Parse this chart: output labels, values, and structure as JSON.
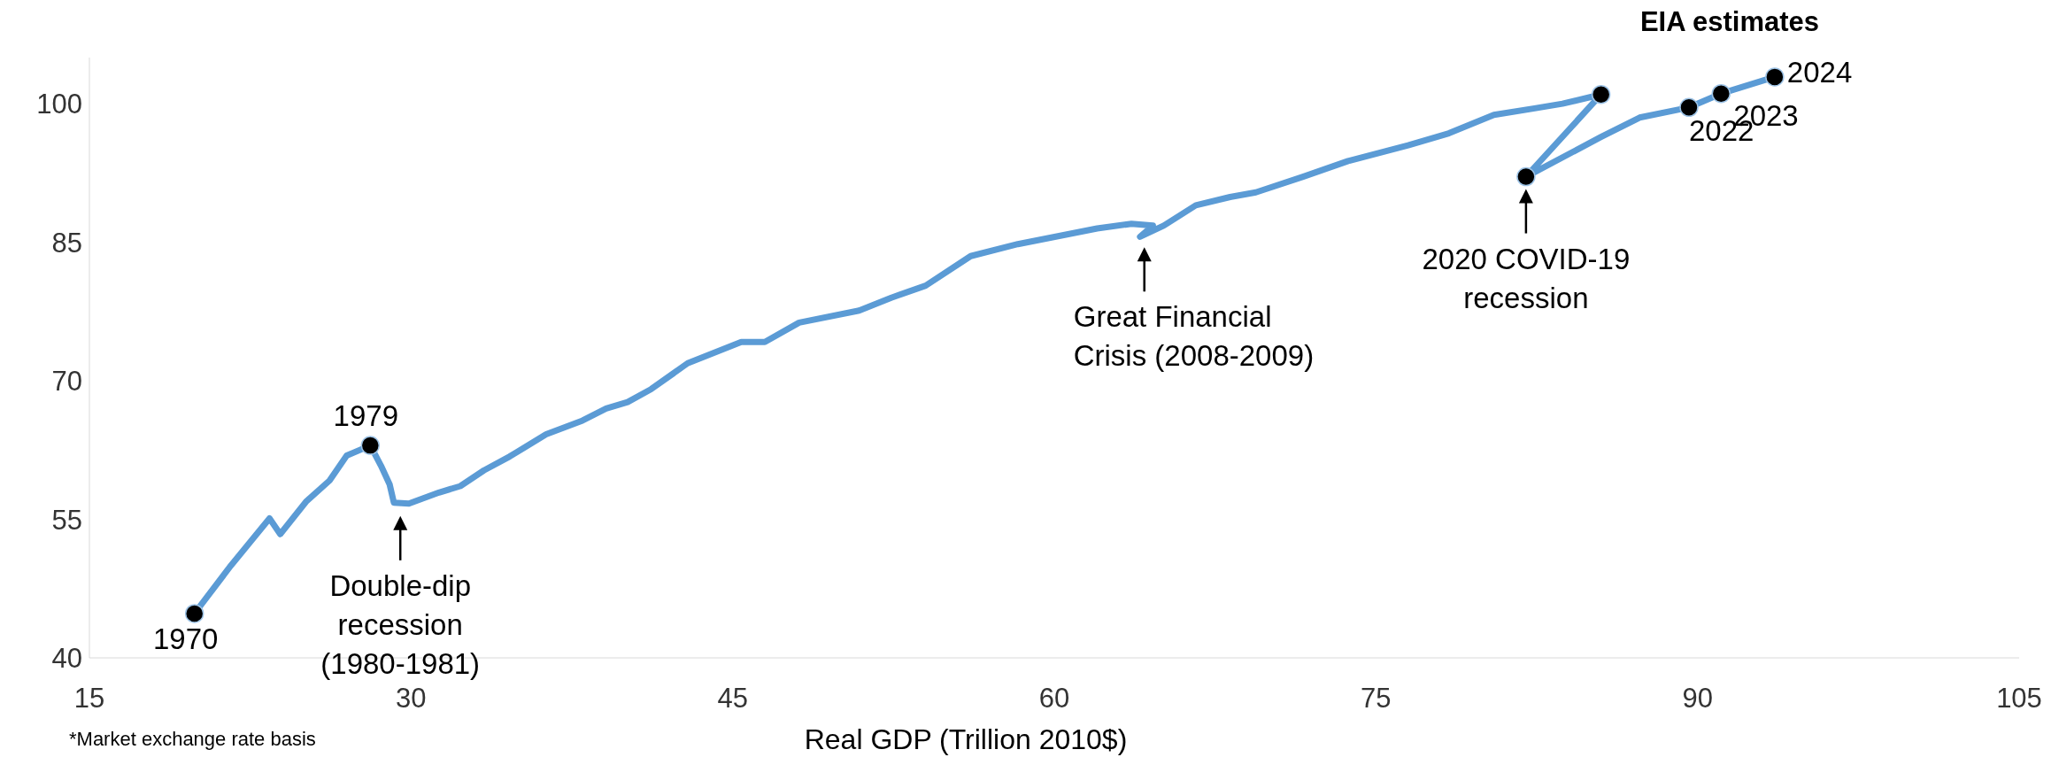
{
  "chart_data": {
    "type": "line",
    "xlabel": "Real GDP (Trillion 2010$)",
    "xlim": [
      15,
      105
    ],
    "xticks": [
      15,
      30,
      45,
      60,
      75,
      90,
      105
    ],
    "ylim": [
      40,
      105
    ],
    "yticks": [
      40,
      55,
      70,
      85,
      100
    ],
    "grid": false,
    "series": [
      {
        "color": "#5b9bd5",
        "marker": "none",
        "line_style": "solid",
        "x": [
          19.9,
          21.6,
          23.4,
          23.9,
          25.1,
          26.2,
          27.0,
          28.1,
          28.6,
          29.0,
          29.2,
          29.9,
          31.3,
          32.3,
          33.4,
          34.6,
          36.3,
          38.0,
          39.1,
          40.1,
          41.2,
          42.9,
          45.4,
          46.5,
          48.1,
          50.9,
          52.4,
          54.0,
          56.1,
          58.3,
          62.0,
          63.6,
          64.6,
          64.0,
          65.1,
          66.6,
          68.2,
          69.4,
          71.6,
          73.7,
          76.5,
          78.4,
          80.5,
          82.4,
          83.7,
          85.5,
          82.0,
          85.5,
          87.3,
          89.6,
          91.1,
          93.6
        ],
        "values": [
          44.8,
          50.0,
          55.1,
          53.4,
          56.9,
          59.2,
          61.9,
          63.0,
          60.8,
          58.8,
          56.8,
          56.7,
          57.9,
          58.6,
          60.3,
          61.8,
          64.2,
          65.7,
          67.0,
          67.7,
          69.1,
          71.9,
          74.2,
          74.2,
          76.3,
          77.6,
          79.0,
          80.3,
          83.5,
          84.8,
          86.5,
          87.0,
          86.8,
          85.6,
          86.8,
          89.0,
          89.9,
          90.4,
          92.1,
          93.8,
          95.5,
          96.8,
          98.8,
          99.5,
          100.0,
          101.0,
          92.1,
          96.4,
          98.5,
          99.6,
          101.1,
          102.9
        ]
      },
      {
        "type": "scatter",
        "color": "#000000",
        "marker": "circle",
        "x": [
          19.9,
          28.1,
          85.5,
          82.0,
          89.6,
          91.1,
          93.6
        ],
        "values": [
          44.8,
          63.0,
          101.0,
          92.1,
          99.6,
          101.1,
          102.9
        ]
      }
    ],
    "annotations": [
      {
        "text": "1970",
        "x": 19.9,
        "y": 44.8
      },
      {
        "text": "1979",
        "x": 28.1,
        "y": 63.0
      },
      {
        "text": "Double-dip recession (1980-1981)",
        "x": 29.5,
        "y": 56.7
      },
      {
        "text": "Great Financial Crisis (2008-2009)",
        "x": 64.2,
        "y": 85.8
      },
      {
        "text": "2020 COVID-19 recession",
        "x": 82.0,
        "y": 92.1
      },
      {
        "text": "2022",
        "x": 89.6,
        "y": 99.6
      },
      {
        "text": "2023",
        "x": 91.1,
        "y": 101.1
      },
      {
        "text": "2024",
        "x": 93.6,
        "y": 102.9
      },
      "EIA estimates",
      "*Market exchange rate basis"
    ]
  }
}
